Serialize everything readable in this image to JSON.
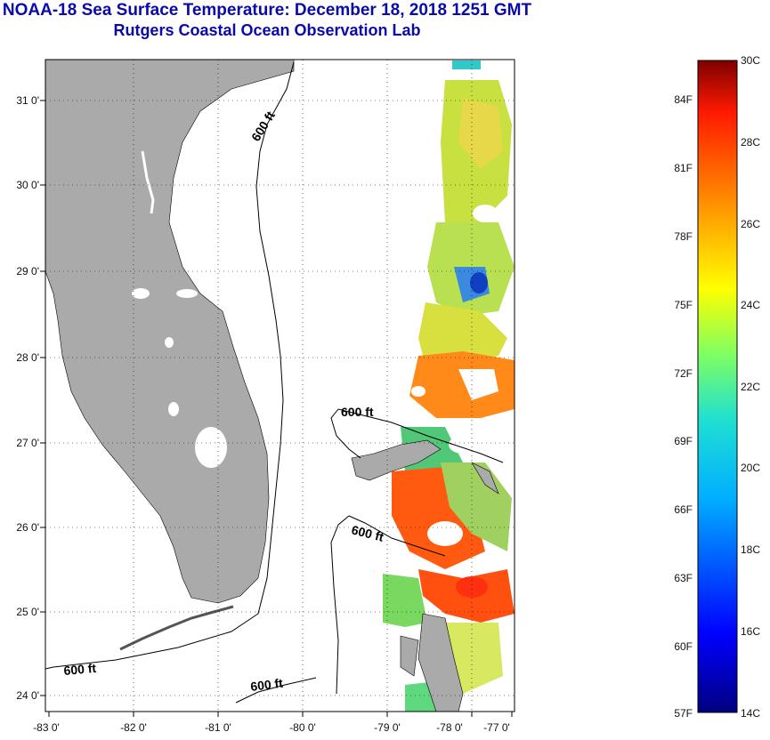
{
  "title": {
    "line1": "NOAA-18 Sea Surface Temperature:  December 18, 2018 1251 GMT",
    "line2": "Rutgers Coastal Ocean Observation Lab"
  },
  "map": {
    "lon_ticks": [
      "-83 0'",
      "-82 0'",
      "-81 0'",
      "-80 0'",
      "-79 0'",
      "-78 0'",
      "-77 0'"
    ],
    "lat_ticks": [
      "31 0'",
      "30 0'",
      "29 0'",
      "28 0'",
      "27 0'",
      "26 0'",
      "25 0'",
      "24 0'"
    ],
    "land_color": "#aaaaaa",
    "contour_labels": [
      "600 ft",
      "600 ft",
      "600 ft",
      "600 ft",
      "600 ft"
    ]
  },
  "colorbar": {
    "fahrenheit": [
      "84F",
      "81F",
      "78F",
      "75F",
      "72F",
      "69F",
      "66F",
      "63F",
      "60F",
      "57F"
    ],
    "celsius": [
      "30C",
      "28C",
      "26C",
      "24C",
      "22C",
      "20C",
      "18C",
      "16C",
      "14C"
    ],
    "gradient": [
      "#00007f",
      "#0000ff",
      "#007fff",
      "#00ffff",
      "#7fff7f",
      "#ffff00",
      "#ff7f00",
      "#ff0000",
      "#7f0000"
    ]
  }
}
